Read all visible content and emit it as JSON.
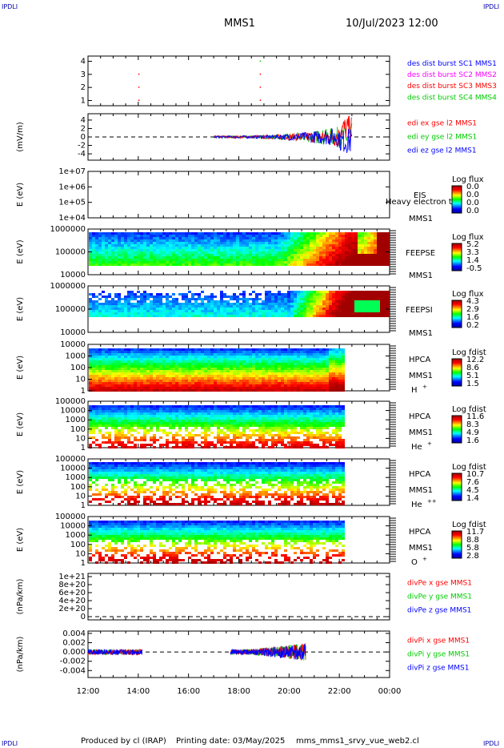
{
  "header": {
    "corner_label": "IPDLI",
    "spacecraft": "MMS1",
    "datetime": "10/Jul/2023 12:00"
  },
  "footer": {
    "produced_by": "Produced by cl (IRAP)",
    "printing_date": "Printing date: 03/May/2025",
    "script_name": "mms_mms1_srvy_vue_web2.cl"
  },
  "colors": {
    "blue": "#0000ff",
    "magenta": "#ff00ff",
    "red": "#ff0000",
    "green": "#00cc00"
  },
  "chart_data": [
    {
      "type": "scatter",
      "panel": "burst",
      "y_ticks": [
        "1",
        "2",
        "3",
        "4"
      ],
      "ylim": [
        0.6,
        4.4
      ],
      "legend": [
        {
          "label": "des dist burst SC1 MMS1",
          "color": "#0000ff"
        },
        {
          "label": "des dist burst SC2 MMS2",
          "color": "#ff00ff"
        },
        {
          "label": "des dist burst SC3 MMS3",
          "color": "#ff0000"
        },
        {
          "label": "des dist burst SC4 MMS4",
          "color": "#00cc00"
        }
      ],
      "points": [
        {
          "t": "14:00",
          "sc": 1
        },
        {
          "t": "14:00",
          "sc": 2
        },
        {
          "t": "14:00",
          "sc": 3
        },
        {
          "t": "18:50",
          "sc": 1
        },
        {
          "t": "18:50",
          "sc": 2
        },
        {
          "t": "18:50",
          "sc": 3
        },
        {
          "t": "18:50",
          "sc": 4
        }
      ]
    },
    {
      "type": "line",
      "panel": "edi",
      "ylabel": "(mV/m)",
      "y_ticks": [
        "-4",
        "-2",
        "0",
        "2",
        "4"
      ],
      "ylim": [
        -5.5,
        5.5
      ],
      "dashed_zero": true,
      "legend": [
        {
          "label": "edi ex gse l2 MMS1",
          "color": "#ff0000"
        },
        {
          "label": "edi ey gse l2 MMS1",
          "color": "#00cc00"
        },
        {
          "label": "edi ez gse l2 MMS1",
          "color": "#0000ff"
        }
      ],
      "data_span": [
        "17:00",
        "22:30"
      ]
    },
    {
      "type": "heatmap",
      "panel": "eis",
      "ylabel": "E (eV)",
      "y_ticks": [
        "1e+04",
        "1e+05",
        "1e+06",
        "1e+07"
      ],
      "instrument": "EIS",
      "sc": "MMS1",
      "overlay_text": "Heavy electron to",
      "colorbar_title": "Log flux",
      "colorbar_ticks": [
        "0.0",
        "0.0",
        "0.0",
        "0.0"
      ]
    },
    {
      "type": "heatmap",
      "panel": "feeps_e",
      "ylabel": "E (eV)",
      "y_ticks": [
        "1000000",
        "100000",
        "10000"
      ],
      "instrument": "FEEPSE",
      "sc": "MMS1",
      "colorbar_title": "Log flux",
      "colorbar_ticks": [
        "5.2",
        "3.3",
        "1.4",
        "-0.5"
      ]
    },
    {
      "type": "heatmap",
      "panel": "feeps_i",
      "ylabel": "E (eV)",
      "y_ticks": [
        "1000000",
        "100000",
        "10000"
      ],
      "instrument": "FEEPSI",
      "sc": "MMS1",
      "colorbar_title": "Log flux",
      "colorbar_ticks": [
        "4.3",
        "2.9",
        "1.6",
        "0.2"
      ]
    },
    {
      "type": "heatmap",
      "panel": "hpca_h",
      "ylabel": "E (eV)",
      "y_ticks": [
        "10000",
        "1000",
        "100",
        "10",
        "1"
      ],
      "instrument": "HPCA",
      "sc": "MMS1",
      "species": "H",
      "charge": "+",
      "colorbar_title": "Log fdist",
      "colorbar_ticks": [
        "12.2",
        "8.6",
        "5.1",
        "1.5"
      ]
    },
    {
      "type": "heatmap",
      "panel": "hpca_he1",
      "ylabel": "E (eV)",
      "y_ticks": [
        "100000",
        "10000",
        "1000",
        "100",
        "10",
        "1"
      ],
      "instrument": "HPCA",
      "sc": "MMS1",
      "species": "He",
      "charge": "+",
      "colorbar_title": "Log fdist",
      "colorbar_ticks": [
        "11.6",
        "8.3",
        "4.9",
        "1.6"
      ]
    },
    {
      "type": "heatmap",
      "panel": "hpca_he2",
      "ylabel": "E (eV)",
      "y_ticks": [
        "100000",
        "10000",
        "1000",
        "100",
        "10",
        "1"
      ],
      "instrument": "HPCA",
      "sc": "MMS1",
      "species": "He",
      "charge": "++",
      "colorbar_title": "Log fdist",
      "colorbar_ticks": [
        "10.7",
        "7.6",
        "4.5",
        "1.4"
      ]
    },
    {
      "type": "heatmap",
      "panel": "hpca_o",
      "ylabel": "E (eV)",
      "y_ticks": [
        "100000",
        "10000",
        "1000",
        "100",
        "10",
        "1"
      ],
      "instrument": "HPCA",
      "sc": "MMS1",
      "species": "O",
      "charge": "+",
      "colorbar_title": "Log fdist",
      "colorbar_ticks": [
        "11.7",
        "8.8",
        "5.8",
        "2.8"
      ]
    },
    {
      "type": "line",
      "panel": "divpe",
      "ylabel": "(nPa/km)",
      "y_ticks": [
        "0",
        "2e+20",
        "4e+20",
        "6e+20",
        "8e+20",
        "1e+21"
      ],
      "dashed_zero": true,
      "legend": [
        {
          "label": "divPe x gse MMS1",
          "color": "#ff0000"
        },
        {
          "label": "divPe y gse MMS1",
          "color": "#00cc00"
        },
        {
          "label": "divPe z gse MMS1",
          "color": "#0000ff"
        }
      ]
    },
    {
      "type": "line",
      "panel": "divpi",
      "ylabel": "(nPa/km)",
      "y_ticks": [
        "0.004",
        "0.002",
        "0.000",
        "-0.002",
        "-0.004"
      ],
      "ylim": [
        -0.0055,
        0.0045
      ],
      "dashed_zero": true,
      "legend": [
        {
          "label": "divPi x gse MMS1",
          "color": "#ff0000"
        },
        {
          "label": "divPi y gse MMS1",
          "color": "#00cc00"
        },
        {
          "label": "divPi z gse MMS1",
          "color": "#0000ff"
        }
      ],
      "data_spans": [
        [
          "12:00",
          "14:10"
        ],
        [
          "17:40",
          "20:40"
        ]
      ]
    }
  ],
  "x_axis": {
    "ticks": [
      "12:00",
      "14:00",
      "16:00",
      "18:00",
      "20:00",
      "22:00",
      "00:00"
    ]
  }
}
